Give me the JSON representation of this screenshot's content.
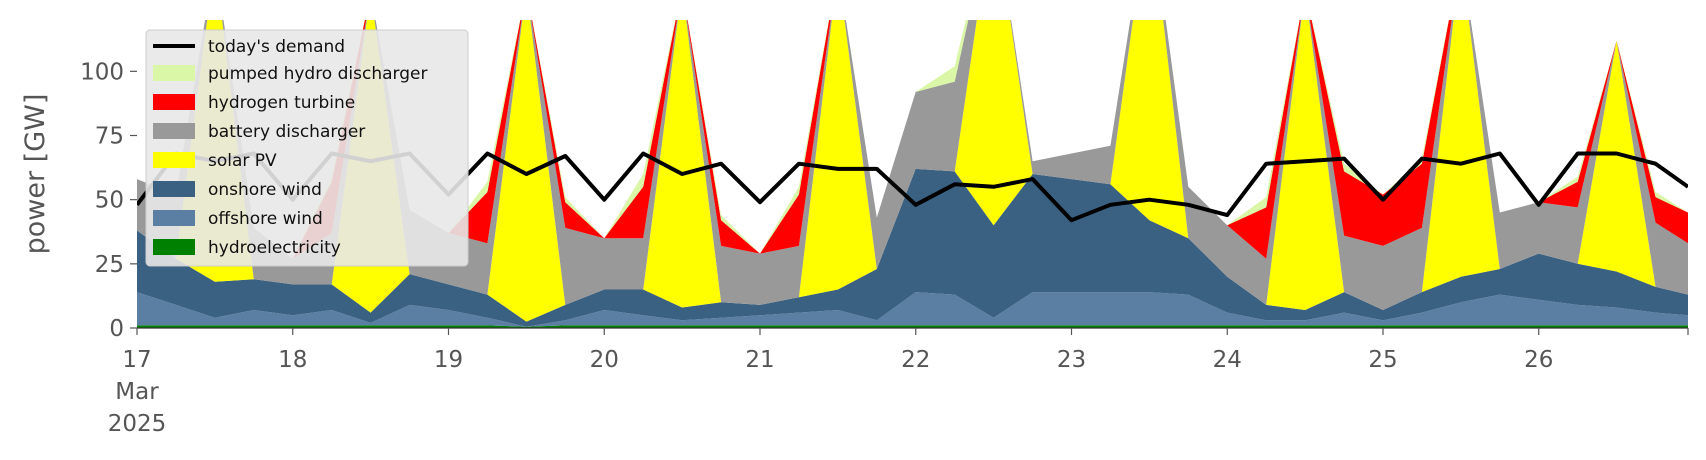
{
  "chart_data": {
    "type": "area",
    "ylabel": "power [GW]",
    "ylim": [
      0,
      120
    ],
    "xlim": [
      "2025-03-17T00:00",
      "2025-03-26T23:00"
    ],
    "yticks": [
      0,
      25,
      50,
      75,
      100
    ],
    "xticks": [
      "17",
      "18",
      "19",
      "20",
      "21",
      "22",
      "23",
      "24",
      "25",
      "26"
    ],
    "x_start_label": [
      "17",
      "Mar",
      "2025"
    ],
    "grid": false,
    "legend_position": "top-left",
    "x": [
      "2025-03-17T00:00",
      "2025-03-17T06:00",
      "2025-03-17T12:00",
      "2025-03-17T18:00",
      "2025-03-18T00:00",
      "2025-03-18T06:00",
      "2025-03-18T12:00",
      "2025-03-18T18:00",
      "2025-03-19T00:00",
      "2025-03-19T06:00",
      "2025-03-19T12:00",
      "2025-03-19T18:00",
      "2025-03-20T00:00",
      "2025-03-20T06:00",
      "2025-03-20T12:00",
      "2025-03-20T18:00",
      "2025-03-21T00:00",
      "2025-03-21T06:00",
      "2025-03-21T12:00",
      "2025-03-21T18:00",
      "2025-03-22T00:00",
      "2025-03-22T06:00",
      "2025-03-22T12:00",
      "2025-03-22T18:00",
      "2025-03-23T00:00",
      "2025-03-23T06:00",
      "2025-03-23T12:00",
      "2025-03-23T18:00",
      "2025-03-24T00:00",
      "2025-03-24T06:00",
      "2025-03-24T12:00",
      "2025-03-24T18:00",
      "2025-03-25T00:00",
      "2025-03-25T06:00",
      "2025-03-25T12:00",
      "2025-03-25T18:00",
      "2025-03-26T00:00",
      "2025-03-26T06:00",
      "2025-03-26T12:00",
      "2025-03-26T18:00",
      "2025-03-26T23:00"
    ],
    "series": [
      {
        "name": "hydroelectricity",
        "color": "#008000",
        "values": [
          1,
          1,
          1,
          1,
          1,
          1,
          1,
          1,
          1,
          1,
          0.5,
          1,
          1,
          1,
          1,
          1,
          1,
          1,
          1,
          1,
          1,
          1,
          1,
          1,
          1,
          1,
          1,
          1,
          1,
          1,
          1,
          1,
          1,
          1,
          1,
          1,
          1,
          1,
          1,
          1,
          1
        ]
      },
      {
        "name": "offshore wind",
        "color": "#5b7fa3",
        "values": [
          13,
          8,
          3,
          6,
          4,
          6,
          1,
          8,
          6,
          3,
          0,
          2,
          6,
          4,
          2,
          3,
          4,
          5,
          6,
          2,
          13,
          12,
          3,
          13,
          13,
          13,
          13,
          12,
          5,
          2,
          2,
          5,
          2,
          5,
          9,
          12,
          10,
          8,
          7,
          5,
          4
        ]
      },
      {
        "name": "onshore wind",
        "color": "#3a6182",
        "values": [
          24,
          18,
          14,
          12,
          12,
          10,
          4,
          12,
          10,
          9,
          2,
          6,
          8,
          10,
          5,
          6,
          4,
          6,
          8,
          20,
          48,
          48,
          36,
          46,
          44,
          42,
          28,
          22,
          14,
          6,
          4,
          8,
          4,
          8,
          10,
          10,
          18,
          16,
          14,
          10,
          8
        ]
      },
      {
        "name": "solar PV",
        "color": "#ffff00",
        "values": [
          0,
          0,
          125,
          0,
          0,
          0,
          125,
          0,
          0,
          0,
          130,
          0,
          0,
          0,
          125,
          0,
          0,
          0,
          125,
          0,
          0,
          0,
          125,
          0,
          0,
          0,
          125,
          0,
          0,
          0,
          125,
          0,
          0,
          0,
          125,
          0,
          0,
          0,
          90,
          0,
          0
        ]
      },
      {
        "name": "battery discharger",
        "color": "#999999",
        "values": [
          20,
          25,
          0,
          20,
          10,
          20,
          0,
          25,
          20,
          20,
          0,
          30,
          20,
          20,
          0,
          22,
          20,
          20,
          0,
          20,
          30,
          35,
          0,
          5,
          10,
          15,
          0,
          20,
          20,
          18,
          0,
          22,
          25,
          25,
          0,
          22,
          20,
          22,
          0,
          25,
          20
        ]
      },
      {
        "name": "hydrogen turbine",
        "color": "#ff0000",
        "values": [
          0,
          0,
          0,
          0,
          0,
          20,
          0,
          0,
          0,
          20,
          0,
          10,
          0,
          20,
          0,
          10,
          0,
          20,
          0,
          0,
          0,
          0,
          0,
          0,
          0,
          0,
          0,
          0,
          0,
          20,
          0,
          25,
          20,
          25,
          0,
          0,
          0,
          10,
          0,
          10,
          12
        ]
      },
      {
        "name": "pumped hydro discharger",
        "color": "#d9f7a6",
        "values": [
          0,
          0,
          0,
          0,
          0,
          2,
          0,
          0,
          0,
          4,
          0,
          2,
          0,
          5,
          0,
          2,
          0,
          3,
          0,
          0,
          0,
          6,
          0,
          0,
          0,
          0,
          0,
          0,
          0,
          4,
          0,
          3,
          0,
          2,
          0,
          0,
          0,
          2,
          0,
          2,
          0
        ]
      }
    ],
    "demand": {
      "name": "today's demand",
      "color": "#000000",
      "values": [
        48,
        68,
        65,
        68,
        50,
        68,
        65,
        68,
        52,
        68,
        60,
        67,
        50,
        68,
        60,
        64,
        49,
        64,
        62,
        62,
        48,
        56,
        55,
        58,
        42,
        48,
        50,
        48,
        44,
        64,
        65,
        66,
        50,
        66,
        64,
        68,
        48,
        68,
        68,
        64,
        55
      ]
    }
  }
}
